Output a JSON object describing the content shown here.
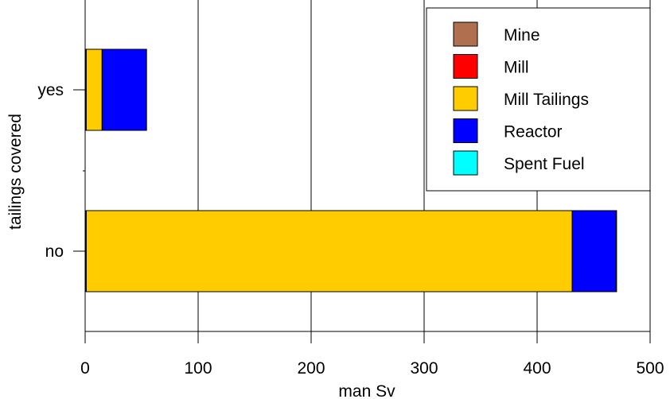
{
  "chart_data": {
    "type": "bar",
    "orientation": "horizontal",
    "stacked": true,
    "title": "",
    "xlabel": "man Sv",
    "ylabel": "tailings covered",
    "categories": [
      "no",
      "yes"
    ],
    "xlim": [
      0,
      500
    ],
    "x_ticks": [
      "0",
      "100",
      "200",
      "300",
      "400",
      "500"
    ],
    "grid": "vertical",
    "legend_position": "top-right",
    "series": [
      {
        "name": "Mine",
        "color": "#b07050",
        "values": [
          0.8,
          0.8
        ]
      },
      {
        "name": "Mill",
        "color": "#ff0000",
        "values": [
          0.2,
          0.2
        ]
      },
      {
        "name": "Mill Tailings",
        "color": "#ffcc00",
        "values": [
          430,
          14
        ]
      },
      {
        "name": "Reactor",
        "color": "#0000ff",
        "values": [
          39,
          39
        ]
      },
      {
        "name": "Spent Fuel",
        "color": "#00ffff",
        "values": [
          0.05,
          0.05
        ]
      }
    ]
  }
}
